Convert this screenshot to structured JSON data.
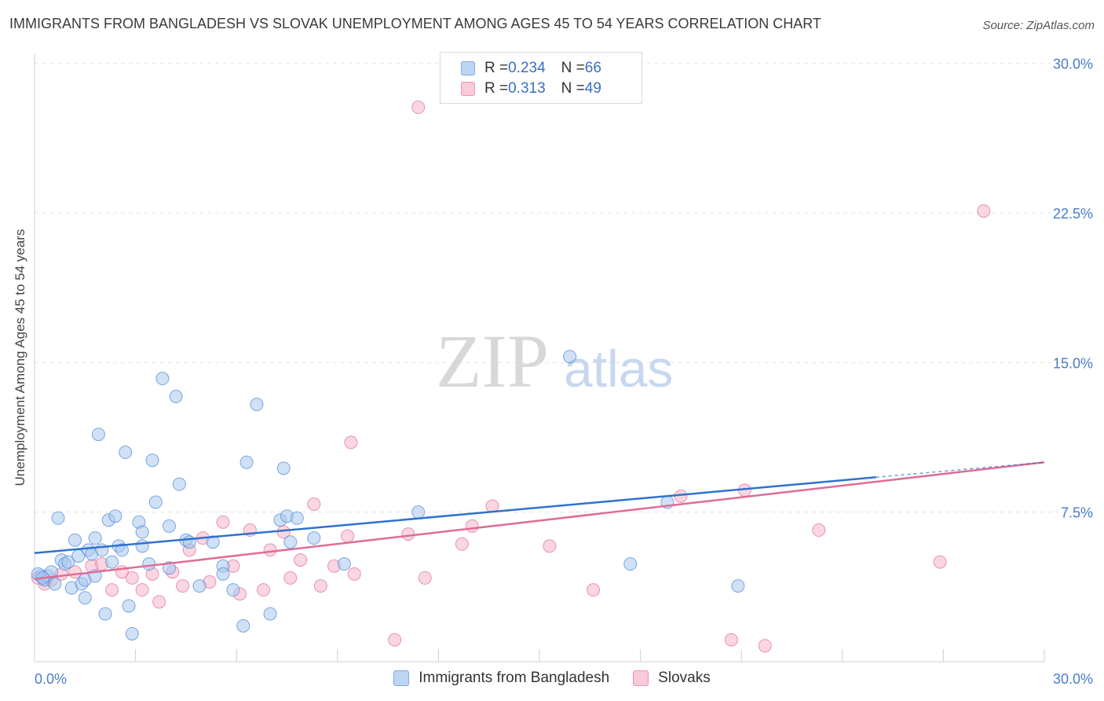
{
  "title": "IMMIGRANTS FROM BANGLADESH VS SLOVAK UNEMPLOYMENT AMONG AGES 45 TO 54 YEARS CORRELATION CHART",
  "source": "Source: ZipAtlas.com",
  "watermark": {
    "zip": "ZIP",
    "atlas": "atlas"
  },
  "legend_top": {
    "rows": [
      {
        "r_label": "R = ",
        "r_value": "0.234",
        "n_label": "N = ",
        "n_value": "66",
        "color": "#a9c8ef"
      },
      {
        "r_label": "R = ",
        "r_value": "0.313",
        "n_label": "N = ",
        "n_value": "49",
        "color": "#f5b4c9"
      }
    ]
  },
  "legend_bottom": {
    "items": [
      {
        "label": "Immigrants from Bangladesh",
        "color": "#a9c8ef"
      },
      {
        "label": "Slovaks",
        "color": "#f5b4c9"
      }
    ]
  },
  "chart_data": {
    "type": "scatter",
    "title": "IMMIGRANTS FROM BANGLADESH VS SLOVAK UNEMPLOYMENT AMONG AGES 45 TO 54 YEARS CORRELATION CHART",
    "xlabel": "",
    "ylabel": "Unemployment Among Ages 45 to 54 years",
    "xlim": [
      0,
      30
    ],
    "ylim": [
      0,
      30.5
    ],
    "x_tick_labels": [
      "0.0%",
      "30.0%"
    ],
    "y_ticks": [
      7.5,
      15.0,
      22.5,
      30.0
    ],
    "y_tick_labels": [
      "7.5%",
      "15.0%",
      "22.5%",
      "30.0%"
    ],
    "grid": true,
    "series": [
      {
        "name": "Immigrants from Bangladesh",
        "color": "#4a86d8",
        "fill": "#a9c8ef",
        "trend": {
          "x": [
            0,
            25
          ],
          "y": [
            5.45,
            9.25
          ],
          "dashed_to": [
            30,
            10.0
          ]
        },
        "points": [
          [
            0.2,
            4.3
          ],
          [
            0.3,
            4.1
          ],
          [
            0.4,
            4.3
          ],
          [
            0.5,
            4.5
          ],
          [
            0.6,
            3.9
          ],
          [
            0.7,
            7.2
          ],
          [
            0.8,
            5.1
          ],
          [
            0.9,
            4.9
          ],
          [
            1.0,
            5.0
          ],
          [
            1.1,
            3.7
          ],
          [
            1.2,
            6.1
          ],
          [
            1.3,
            5.3
          ],
          [
            1.4,
            3.9
          ],
          [
            1.5,
            4.1
          ],
          [
            1.5,
            3.2
          ],
          [
            1.6,
            5.6
          ],
          [
            1.7,
            5.4
          ],
          [
            1.8,
            4.3
          ],
          [
            1.8,
            6.2
          ],
          [
            1.9,
            11.4
          ],
          [
            2.0,
            5.6
          ],
          [
            2.1,
            2.4
          ],
          [
            2.2,
            7.1
          ],
          [
            2.3,
            5.0
          ],
          [
            2.4,
            7.3
          ],
          [
            2.5,
            5.8
          ],
          [
            2.6,
            5.6
          ],
          [
            2.7,
            10.5
          ],
          [
            2.8,
            2.8
          ],
          [
            2.9,
            1.4
          ],
          [
            3.1,
            7.0
          ],
          [
            3.2,
            5.8
          ],
          [
            3.2,
            6.5
          ],
          [
            3.4,
            4.9
          ],
          [
            3.5,
            10.1
          ],
          [
            3.6,
            8.0
          ],
          [
            3.8,
            14.2
          ],
          [
            4.0,
            4.7
          ],
          [
            4.0,
            6.8
          ],
          [
            4.2,
            13.3
          ],
          [
            4.3,
            8.9
          ],
          [
            4.5,
            6.1
          ],
          [
            4.6,
            6.0
          ],
          [
            4.9,
            3.8
          ],
          [
            5.3,
            6.0
          ],
          [
            5.6,
            4.8
          ],
          [
            5.6,
            4.4
          ],
          [
            5.9,
            3.6
          ],
          [
            6.2,
            1.8
          ],
          [
            6.3,
            10.0
          ],
          [
            6.6,
            12.9
          ],
          [
            7.0,
            2.4
          ],
          [
            7.3,
            7.1
          ],
          [
            7.4,
            9.7
          ],
          [
            7.5,
            7.3
          ],
          [
            7.6,
            6.0
          ],
          [
            7.8,
            7.2
          ],
          [
            8.3,
            6.2
          ],
          [
            9.2,
            4.9
          ],
          [
            11.4,
            7.5
          ],
          [
            15.9,
            15.3
          ],
          [
            17.7,
            4.9
          ],
          [
            18.8,
            8.0
          ],
          [
            20.9,
            3.8
          ],
          [
            0.1,
            4.4
          ],
          [
            0.25,
            4.2
          ]
        ]
      },
      {
        "name": "Slovaks",
        "color": "#e06c95",
        "fill": "#f5b4c9",
        "trend": {
          "x": [
            0,
            30
          ],
          "y": [
            4.15,
            10.0
          ]
        },
        "points": [
          [
            0.1,
            4.2
          ],
          [
            0.3,
            3.9
          ],
          [
            0.5,
            4.1
          ],
          [
            0.8,
            4.4
          ],
          [
            1.2,
            4.5
          ],
          [
            1.7,
            4.8
          ],
          [
            2.0,
            4.9
          ],
          [
            2.3,
            3.6
          ],
          [
            2.6,
            4.5
          ],
          [
            2.9,
            4.2
          ],
          [
            3.2,
            3.6
          ],
          [
            3.5,
            4.4
          ],
          [
            3.7,
            3.0
          ],
          [
            4.1,
            4.5
          ],
          [
            4.4,
            3.8
          ],
          [
            4.6,
            5.6
          ],
          [
            5.0,
            6.2
          ],
          [
            5.2,
            4.0
          ],
          [
            5.6,
            7.0
          ],
          [
            5.9,
            4.8
          ],
          [
            6.1,
            3.4
          ],
          [
            6.4,
            6.6
          ],
          [
            6.8,
            3.6
          ],
          [
            7.0,
            5.6
          ],
          [
            7.4,
            6.5
          ],
          [
            7.6,
            4.2
          ],
          [
            7.9,
            5.1
          ],
          [
            8.3,
            7.9
          ],
          [
            8.5,
            3.8
          ],
          [
            8.9,
            4.8
          ],
          [
            9.3,
            6.3
          ],
          [
            9.5,
            4.4
          ],
          [
            9.4,
            11.0
          ],
          [
            10.7,
            1.1
          ],
          [
            11.1,
            6.4
          ],
          [
            11.6,
            4.2
          ],
          [
            11.4,
            27.8
          ],
          [
            12.7,
            5.9
          ],
          [
            13.0,
            6.8
          ],
          [
            13.6,
            7.8
          ],
          [
            15.3,
            5.8
          ],
          [
            16.6,
            3.6
          ],
          [
            19.2,
            8.3
          ],
          [
            20.7,
            1.1
          ],
          [
            21.1,
            8.6
          ],
          [
            21.7,
            0.8
          ],
          [
            23.3,
            6.6
          ],
          [
            26.9,
            5.0
          ],
          [
            28.2,
            22.6
          ]
        ]
      }
    ]
  }
}
